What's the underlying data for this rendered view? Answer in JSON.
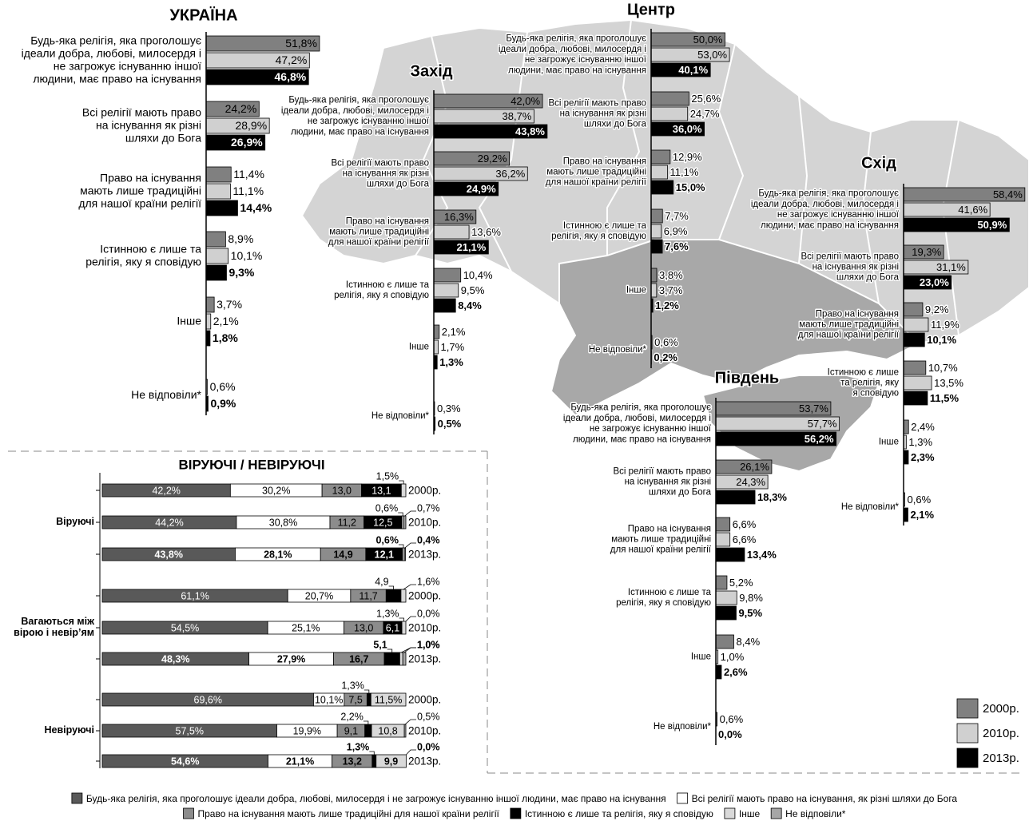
{
  "chart_data": [
    {
      "type": "bar",
      "orientation": "horizontal",
      "title": "УКРАЇНА",
      "categories": [
        "Будь-яка релігія, яка проголошує\nідеали добра, любові, милосердя і\nне загрожує існуванню іншої\nлюдини, має право на існування",
        "Всі релігії мають право\nна існування як різні\nшляхи до Бога",
        "Право на існування\nмають лише традиційні\nдля нашої країни релігії",
        "Істинною є лише та\nрелігія, яку я сповідую",
        "Інше",
        "Не відповіли*"
      ],
      "series": [
        {
          "color": "#808080",
          "values": [
            51.8,
            24.2,
            11.4,
            8.9,
            3.7,
            null
          ],
          "value_labels": [
            "51,8%",
            "24,2%",
            "11,4%",
            "8,9%",
            "3,7%",
            null
          ]
        },
        {
          "color": "#d0d0d0",
          "values": [
            47.2,
            28.9,
            11.1,
            10.1,
            2.1,
            0.6
          ],
          "value_labels": [
            "47,2%",
            "28,9%",
            "11,1%",
            "10,1%",
            "2,1%",
            "0,6%"
          ]
        },
        {
          "color": "#000000",
          "values": [
            46.8,
            26.9,
            14.4,
            9.3,
            1.8,
            0.9
          ],
          "value_labels": [
            "46,8%",
            "26,9%",
            "14,4%",
            "9,3%",
            "1,8%",
            "0,9%"
          ]
        }
      ]
    },
    {
      "type": "bar",
      "orientation": "horizontal",
      "title": "Захід",
      "categories": [
        "Будь-яка релігія, яка проголошує\nідеали добра, любові, милосердя і\nне загрожує існуванню іншої\nлюдини, має право на існування",
        "Всі релігії мають право\nна існування як різні\nшляхи до Бога",
        "Право на існування\nмають лише традиційні\nдля нашої країни релігії",
        "Істинною є лише та\nрелігія, яку я сповідую",
        "Інше",
        "Не відповіли*"
      ],
      "series": [
        {
          "color": "#808080",
          "values": [
            42.0,
            29.2,
            16.3,
            10.4,
            2.1,
            0.3
          ],
          "value_labels": [
            "42,0%",
            "29,2%",
            "16,3%",
            "10,4%",
            "2,1%",
            "0,3%"
          ]
        },
        {
          "color": "#d0d0d0",
          "values": [
            38.7,
            36.2,
            13.6,
            9.5,
            1.7,
            null
          ],
          "value_labels": [
            "38,7%",
            "36,2%",
            "13,6%",
            "9,5%",
            "1,7%",
            null
          ]
        },
        {
          "color": "#000000",
          "values": [
            43.8,
            24.9,
            21.1,
            8.4,
            1.3,
            0.5
          ],
          "value_labels": [
            "43,8%",
            "24,9%",
            "21,1%",
            "8,4%",
            "1,3%",
            "0,5%"
          ]
        }
      ]
    },
    {
      "type": "bar",
      "orientation": "horizontal",
      "title": "Центр",
      "categories": [
        "Будь-яка релігія, яка проголошує\nідеали добра, любові, милосердя і\nне загрожує існуванню іншої\nлюдини, має право на існування",
        "Всі релігії мають право\nна існування як різні\nшляхи до Бога",
        "Право на існування\nмають лише традиційні\nдля нашої країни релігії",
        "Істинною є лише та\nрелігія, яку я сповідую",
        "Інше",
        "Не відповіли*"
      ],
      "series": [
        {
          "color": "#808080",
          "values": [
            50.0,
            25.6,
            12.9,
            7.7,
            3.8,
            0.6
          ],
          "value_labels": [
            "50,0%",
            "25,6%",
            "12,9%",
            "7,7%",
            "3,8%",
            "0,6%"
          ]
        },
        {
          "color": "#d0d0d0",
          "values": [
            53.0,
            24.7,
            11.1,
            6.9,
            3.7,
            null
          ],
          "value_labels": [
            "53,0%",
            "24,7%",
            "11,1%",
            "6,9%",
            "3,7%",
            null
          ]
        },
        {
          "color": "#000000",
          "values": [
            40.1,
            36.0,
            15.0,
            7.6,
            1.2,
            0.2
          ],
          "value_labels": [
            "40,1%",
            "36,0%",
            "15,0%",
            "7,6%",
            "1,2%",
            "0,2%"
          ]
        }
      ]
    },
    {
      "type": "bar",
      "orientation": "horizontal",
      "title": "Схід",
      "categories": [
        "Будь-яка релігія, яка проголошує\nідеали добра, любові, милосердя і\nне загрожує існуванню іншої\nлюдини, має право на існування",
        "Всі релігії мають право\nна існування як різні\nшляхи до Бога",
        "Право на існування\nмають лише традиційні\nдля нашої країни релігії",
        "Істинною є лише\nта релігія, яку\nя сповідую",
        "Інше",
        "Не відповіли*"
      ],
      "series": [
        {
          "color": "#808080",
          "values": [
            58.4,
            19.3,
            9.2,
            10.7,
            2.4,
            null
          ],
          "value_labels": [
            "58,4%",
            "19,3%",
            "9,2%",
            "10,7%",
            "2,4%",
            null
          ]
        },
        {
          "color": "#d0d0d0",
          "values": [
            41.6,
            31.1,
            11.9,
            13.5,
            1.3,
            0.6
          ],
          "value_labels": [
            "41,6%",
            "31,1%",
            "11,9%",
            "13,5%",
            "1,3%",
            "0,6%"
          ]
        },
        {
          "color": "#000000",
          "values": [
            50.9,
            23.0,
            10.1,
            11.5,
            2.3,
            2.1
          ],
          "value_labels": [
            "50,9%",
            "23,0%",
            "10,1%",
            "11,5%",
            "2,3%",
            "2,1%"
          ]
        }
      ]
    },
    {
      "type": "bar",
      "orientation": "horizontal",
      "title": "Південь",
      "legend": "bottom-right",
      "categories": [
        "Будь-яка релігія, яка проголошує\nідеали добра, любові, милосердя і\nне загрожує існуванню іншої\nлюдини, має право на існування",
        "Всі релігії мають право\nна існування як різні\nшляхи до Бога",
        "Право на існування\nмають лише традиційні\nдля нашої країни релігії",
        "Істинною є лише та\nрелігія, яку я сповідую",
        "Інше",
        "Не відповіли*"
      ],
      "series": [
        {
          "name": "2000р.",
          "color": "#808080",
          "values": [
            53.7,
            26.1,
            6.6,
            5.2,
            8.4,
            0.6
          ],
          "value_labels": [
            "53,7%",
            "26,1%",
            "6,6%",
            "5,2%",
            "8,4%",
            "0,6%"
          ]
        },
        {
          "name": "2010р.",
          "color": "#d0d0d0",
          "values": [
            57.7,
            24.3,
            6.6,
            9.8,
            1.0,
            null
          ],
          "value_labels": [
            "57,7%",
            "24,3%",
            "6,6%",
            "9,8%",
            "1,0%",
            null
          ]
        },
        {
          "name": "2013р.",
          "color": "#000000",
          "values": [
            56.2,
            18.3,
            13.4,
            9.5,
            2.6,
            0.0
          ],
          "value_labels": [
            "56,2%",
            "18,3%",
            "13,4%",
            "9,5%",
            "2,6%",
            "0,0%"
          ]
        }
      ]
    },
    {
      "type": "stacked_bar",
      "orientation": "horizontal",
      "title": "ВІРУЮЧІ / НЕВІРУЮЧІ",
      "legend": "bottom",
      "groups": [
        "Віруючі",
        "Вагаються між\nвірою і невір’ям",
        "Невіруючі"
      ],
      "categories": [
        "2000р.",
        "2010р.",
        "2013р.",
        "2000р.",
        "2010р.",
        "2013р.",
        "2000р.",
        "2010р.",
        "2013р."
      ],
      "series": [
        {
          "name": "Будь-яка релігія, яка проголошує ідеали добра, любові, милосердя і не загрожує існуванню іншої людини, має право на існування",
          "color": "#595959",
          "values": [
            42.2,
            44.2,
            43.8,
            61.1,
            54.5,
            48.3,
            69.6,
            57.5,
            54.6
          ],
          "value_labels": [
            "42,2%",
            "44,2%",
            "43,8%",
            "61,1%",
            "54,5%",
            "48,3%",
            "69,6%",
            "57,5%",
            "54,6%"
          ]
        },
        {
          "name": "Всі релігії мають право на існування, як різні шляхи до Бога",
          "color": "#ffffff",
          "values": [
            30.2,
            30.8,
            28.1,
            20.7,
            25.1,
            27.9,
            10.1,
            19.9,
            21.1
          ],
          "value_labels": [
            "30,2%",
            "30,8%",
            "28,1%",
            "20,7%",
            "25,1%",
            "27,9%",
            "10,1%",
            "19,9%",
            "21,1%"
          ]
        },
        {
          "name": "Право на існування мають лише традиційні для нашої країни релігії",
          "color": "#8c8c8c",
          "values": [
            13.0,
            11.2,
            14.9,
            11.7,
            13.0,
            16.7,
            7.5,
            9.1,
            13.2
          ],
          "value_labels": [
            "13,0",
            "11,2",
            "14,9",
            "11,7",
            "13,0",
            "16,7",
            "7,5",
            "9,1",
            "13,2"
          ]
        },
        {
          "name": "Істинною є лише та релігія, яку я сповідую",
          "color": "#000000",
          "values": [
            13.1,
            12.5,
            12.1,
            4.9,
            6.1,
            5.1,
            1.3,
            2.2,
            1.3
          ],
          "value_labels": [
            "13,1",
            "12,5",
            "12,1",
            "4,9",
            "6,1",
            "5,1",
            "1,3%",
            "2,2%",
            "1,3%"
          ]
        },
        {
          "name": "Інше",
          "color": "#d9d9d9",
          "values": [
            1.5,
            0.6,
            0.6,
            1.6,
            1.3,
            1.0,
            11.5,
            10.8,
            9.9
          ],
          "value_labels": [
            "1,5%",
            "0,6%",
            "0,6%",
            "1,6%",
            "1,3%",
            "1,0%",
            "11,5%",
            "10,8",
            "9,9"
          ]
        },
        {
          "name": "Не відповіли*",
          "color": "#a6a6a6",
          "values": [
            null,
            0.7,
            0.4,
            null,
            0.0,
            1.0,
            null,
            0.5,
            0.0
          ],
          "value_labels": [
            null,
            "0,7%",
            "0,4%",
            null,
            "0,0%",
            "1,0%",
            null,
            "0,5%",
            "0,0%"
          ]
        }
      ]
    }
  ]
}
